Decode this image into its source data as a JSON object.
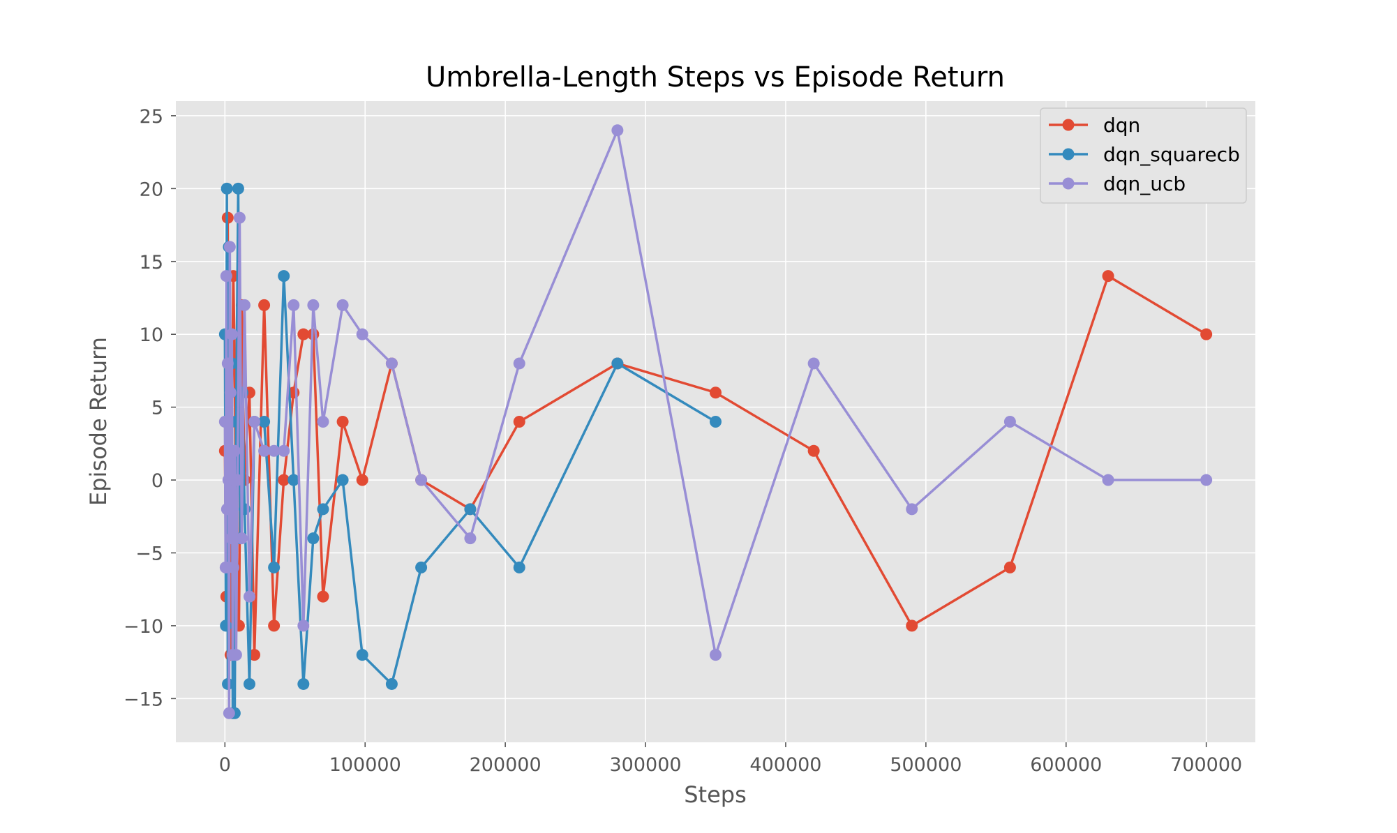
{
  "chart_data": {
    "type": "line",
    "title": "Umbrella-Length Steps vs Episode Return",
    "xlabel": "Steps",
    "ylabel": "Episode Return",
    "xlim": [
      -35000,
      735000
    ],
    "ylim": [
      -18,
      26
    ],
    "xticks": [
      0,
      100000,
      200000,
      300000,
      400000,
      500000,
      600000,
      700000
    ],
    "xtick_labels": [
      "0",
      "100000",
      "200000",
      "300000",
      "400000",
      "500000",
      "600000",
      "700000"
    ],
    "yticks": [
      -15,
      -10,
      -5,
      0,
      5,
      10,
      15,
      20,
      25
    ],
    "ytick_labels": [
      "−15",
      "−10",
      "−5",
      "0",
      "5",
      "10",
      "15",
      "20",
      "25"
    ],
    "grid": true,
    "legend_position": "top-right",
    "series": [
      {
        "name": "dqn",
        "color": "#E24A33",
        "x": [
          0,
          1000,
          2000,
          3000,
          4000,
          5000,
          6000,
          7000,
          8000,
          10000,
          12000,
          14000,
          17500,
          21000,
          28000,
          35000,
          42000,
          49000,
          56000,
          63000,
          70000,
          84000,
          98000,
          119000,
          140000,
          175000,
          210000,
          280000,
          350000,
          420000,
          490000,
          560000,
          630000,
          700000
        ],
        "y": [
          2,
          -8,
          18,
          -6,
          -12,
          4,
          14,
          8,
          -4,
          -10,
          12,
          0,
          6,
          -12,
          12,
          -10,
          0,
          6,
          10,
          10,
          -8,
          4,
          0,
          8,
          0,
          -2,
          4,
          8,
          6,
          2,
          -10,
          -6,
          14,
          10
        ]
      },
      {
        "name": "dqn_squarecb",
        "color": "#348ABD",
        "x": [
          0,
          700,
          1400,
          2100,
          2800,
          3500,
          4200,
          4900,
          5600,
          6300,
          7000,
          8000,
          9500,
          11000,
          12500,
          14000,
          17500,
          21000,
          28000,
          35000,
          42000,
          49000,
          56000,
          63000,
          70000,
          84000,
          98000,
          119000,
          140000,
          175000,
          210000,
          280000,
          350000
        ],
        "y": [
          10,
          -10,
          20,
          -14,
          16,
          2,
          10,
          8,
          -16,
          0,
          -16,
          4,
          20,
          -4,
          6,
          -2,
          -14,
          4,
          4,
          -6,
          14,
          0,
          -14,
          -4,
          -2,
          0,
          -12,
          -14,
          -6,
          -2,
          -6,
          8,
          4
        ]
      },
      {
        "name": "dqn_ucb",
        "color": "#988ED5",
        "x": [
          0,
          500,
          1000,
          1500,
          2000,
          2500,
          3000,
          3500,
          4000,
          4500,
          5000,
          5500,
          6000,
          7000,
          8000,
          9000,
          10500,
          12000,
          14000,
          17500,
          21000,
          28000,
          35000,
          42000,
          49000,
          56000,
          63000,
          70000,
          84000,
          98000,
          119000,
          140000,
          175000,
          210000,
          280000,
          350000,
          420000,
          490000,
          560000,
          630000,
          700000
        ],
        "y": [
          4,
          -6,
          14,
          -2,
          8,
          0,
          -16,
          16,
          6,
          -4,
          10,
          -12,
          -6,
          2,
          -12,
          0,
          18,
          -4,
          12,
          -8,
          4,
          2,
          2,
          2,
          12,
          -10,
          12,
          4,
          12,
          10,
          8,
          0,
          -4,
          8,
          24,
          -12,
          8,
          -2,
          4,
          0,
          0
        ]
      }
    ]
  }
}
